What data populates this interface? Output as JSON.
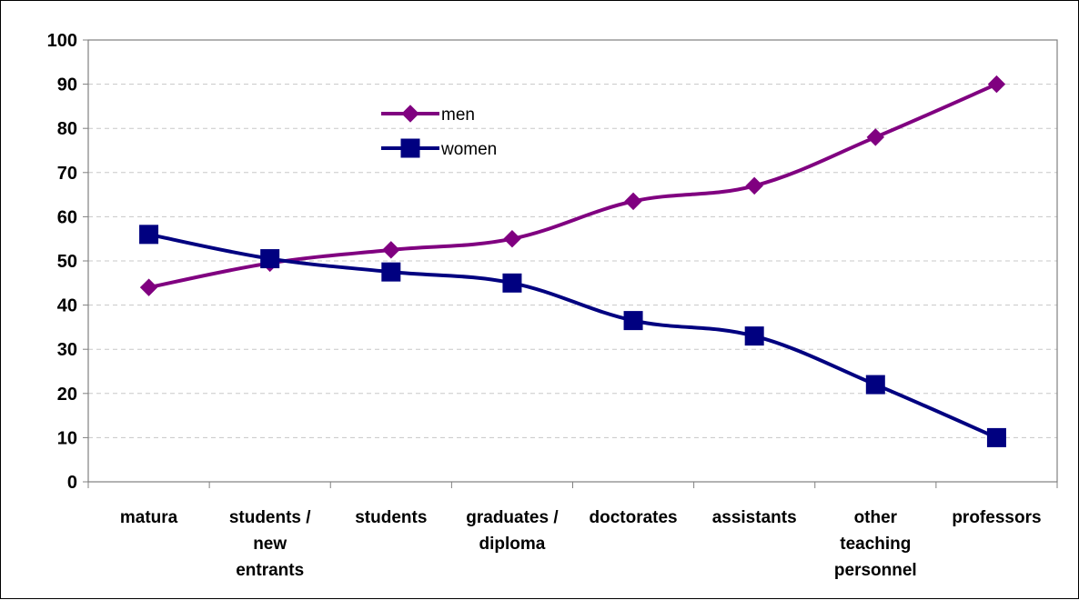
{
  "chart_data": {
    "type": "line",
    "title": "",
    "xlabel": "",
    "ylabel": "",
    "categories": [
      [
        "matura"
      ],
      [
        "students /",
        "new",
        "entrants"
      ],
      [
        "students"
      ],
      [
        "graduates /",
        "diploma"
      ],
      [
        "doctorates"
      ],
      [
        "assistants"
      ],
      [
        "other",
        "teaching",
        "personnel"
      ],
      [
        "professors"
      ]
    ],
    "series": [
      {
        "name": "men",
        "color": "#800080",
        "marker": "diamond",
        "values": [
          44,
          49.5,
          52.5,
          55,
          63.5,
          67,
          78,
          90
        ]
      },
      {
        "name": "women",
        "color": "#000080",
        "marker": "square",
        "values": [
          56,
          50.5,
          47.5,
          45,
          36.5,
          33,
          22,
          10
        ]
      }
    ],
    "ylim": [
      0,
      100
    ],
    "yticks": [
      0,
      10,
      20,
      30,
      40,
      50,
      60,
      70,
      80,
      90,
      100
    ],
    "grid": true,
    "legend_position": "upper-left-inside"
  }
}
